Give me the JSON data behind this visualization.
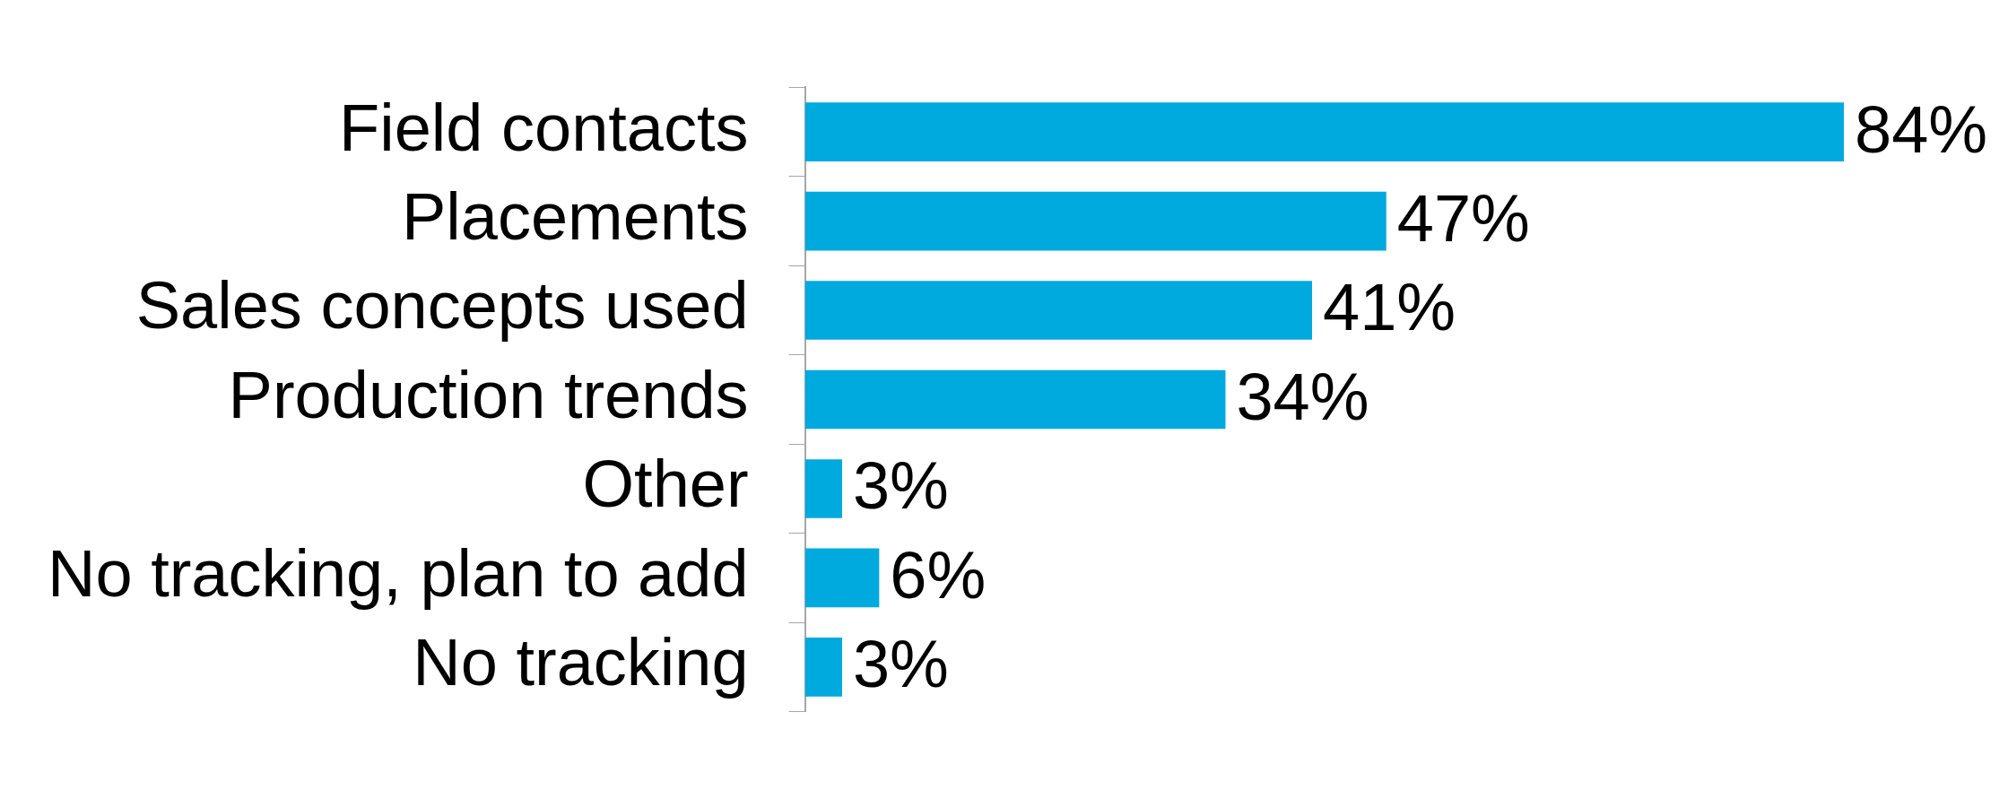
{
  "chart_data": {
    "type": "bar",
    "orientation": "horizontal",
    "categories": [
      "Field contacts",
      "Placements",
      "Sales concepts used",
      "Production trends",
      "Other",
      "No tracking, plan to add",
      "No tracking"
    ],
    "values": [
      84,
      47,
      41,
      34,
      3,
      6,
      3
    ],
    "value_labels": [
      "84%",
      "47%",
      "41%",
      "34%",
      "3%",
      "6%",
      "3%"
    ],
    "color": "#00aadf",
    "legend": false,
    "tick_labels": "y"
  }
}
